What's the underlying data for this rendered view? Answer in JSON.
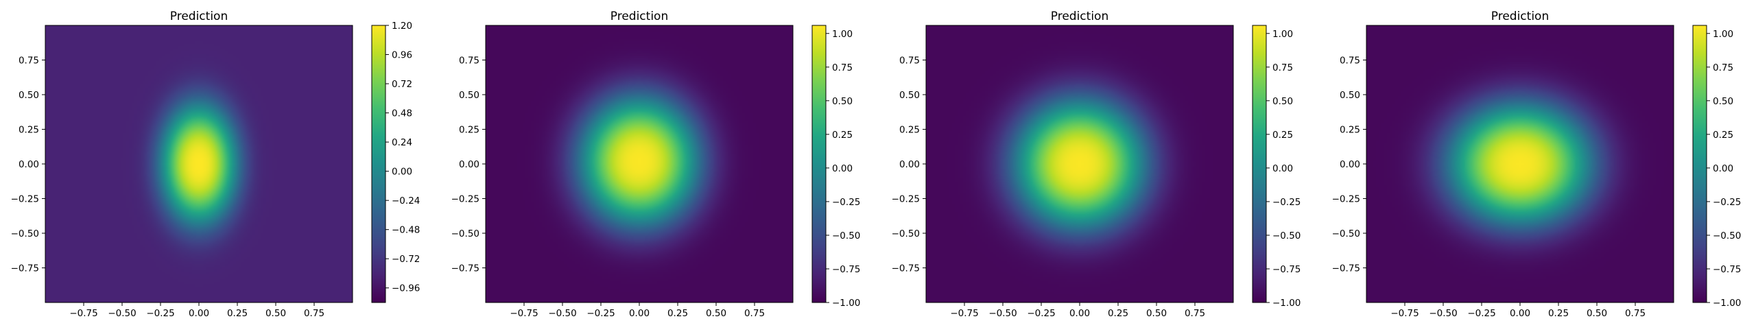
{
  "chart_data": [
    {
      "type": "heatmap",
      "title": "Prediction",
      "xlabel": "",
      "ylabel": "",
      "xlim": [
        -1,
        1
      ],
      "ylim": [
        -1,
        1
      ],
      "x_ticks": [
        "−0.75",
        "−0.50",
        "−0.25",
        "0.00",
        "0.25",
        "0.50",
        "0.75"
      ],
      "y_ticks": [
        "0.75",
        "0.50",
        "0.25",
        "0.00",
        "−0.25",
        "−0.50",
        "−0.75"
      ],
      "colormap": "viridis",
      "colorbar_range": [
        -1.08,
        1.2
      ],
      "colorbar_ticks": [
        "1.20",
        "0.96",
        "0.72",
        "0.48",
        "0.24",
        "0.00",
        "−0.24",
        "−0.48",
        "−0.72",
        "−0.96"
      ],
      "field": {
        "peak_value": 1.2,
        "background_value": -0.85,
        "center": [
          0.0,
          0.0
        ],
        "sigma_x": 0.19,
        "sigma_y": 0.33
      }
    },
    {
      "type": "heatmap",
      "title": "Prediction",
      "xlabel": "",
      "ylabel": "",
      "xlim": [
        -1,
        1
      ],
      "ylim": [
        -1,
        1
      ],
      "x_ticks": [
        "−0.75",
        "−0.50",
        "−0.25",
        "0.00",
        "0.25",
        "0.50",
        "0.75"
      ],
      "y_ticks": [
        "0.75",
        "0.50",
        "0.25",
        "0.00",
        "−0.25",
        "−0.50",
        "−0.75"
      ],
      "colormap": "viridis",
      "colorbar_range": [
        -1.0,
        1.06
      ],
      "colorbar_ticks": [
        "1.00",
        "0.75",
        "0.50",
        "0.25",
        "0.00",
        "−0.25",
        "−0.50",
        "−0.75",
        "−1.00"
      ],
      "field": {
        "peak_value": 1.05,
        "background_value": -0.96,
        "center": [
          0.0,
          0.02
        ],
        "sigma_x": 0.3,
        "sigma_y": 0.36
      }
    },
    {
      "type": "heatmap",
      "title": "Prediction",
      "xlabel": "",
      "ylabel": "",
      "xlim": [
        -1,
        1
      ],
      "ylim": [
        -1,
        1
      ],
      "x_ticks": [
        "−0.75",
        "−0.50",
        "−0.25",
        "0.00",
        "0.25",
        "0.50",
        "0.75"
      ],
      "y_ticks": [
        "0.75",
        "0.50",
        "0.25",
        "0.00",
        "−0.25",
        "−0.50",
        "−0.75"
      ],
      "colormap": "viridis",
      "colorbar_range": [
        -1.0,
        1.06
      ],
      "colorbar_ticks": [
        "1.00",
        "0.75",
        "0.50",
        "0.25",
        "0.00",
        "−0.25",
        "−0.50",
        "−0.75",
        "−1.00"
      ],
      "field": {
        "peak_value": 1.05,
        "background_value": -0.96,
        "center": [
          0.0,
          0.0
        ],
        "sigma_x": 0.33,
        "sigma_y": 0.36
      }
    },
    {
      "type": "heatmap",
      "title": "Prediction",
      "xlabel": "",
      "ylabel": "",
      "xlim": [
        -1,
        1
      ],
      "ylim": [
        -1,
        1
      ],
      "x_ticks": [
        "−0.75",
        "−0.50",
        "−0.25",
        "0.00",
        "0.25",
        "0.50",
        "0.75"
      ],
      "y_ticks": [
        "0.75",
        "0.50",
        "0.25",
        "0.00",
        "−0.25",
        "−0.50",
        "−0.75"
      ],
      "colormap": "viridis",
      "colorbar_range": [
        -1.0,
        1.06
      ],
      "colorbar_ticks": [
        "1.00",
        "0.75",
        "0.50",
        "0.25",
        "0.00",
        "−0.25",
        "−0.50",
        "−0.75",
        "−1.00"
      ],
      "field": {
        "peak_value": 1.05,
        "background_value": -0.96,
        "center": [
          0.0,
          0.0
        ],
        "sigma_x": 0.36,
        "sigma_y": 0.34
      }
    }
  ]
}
